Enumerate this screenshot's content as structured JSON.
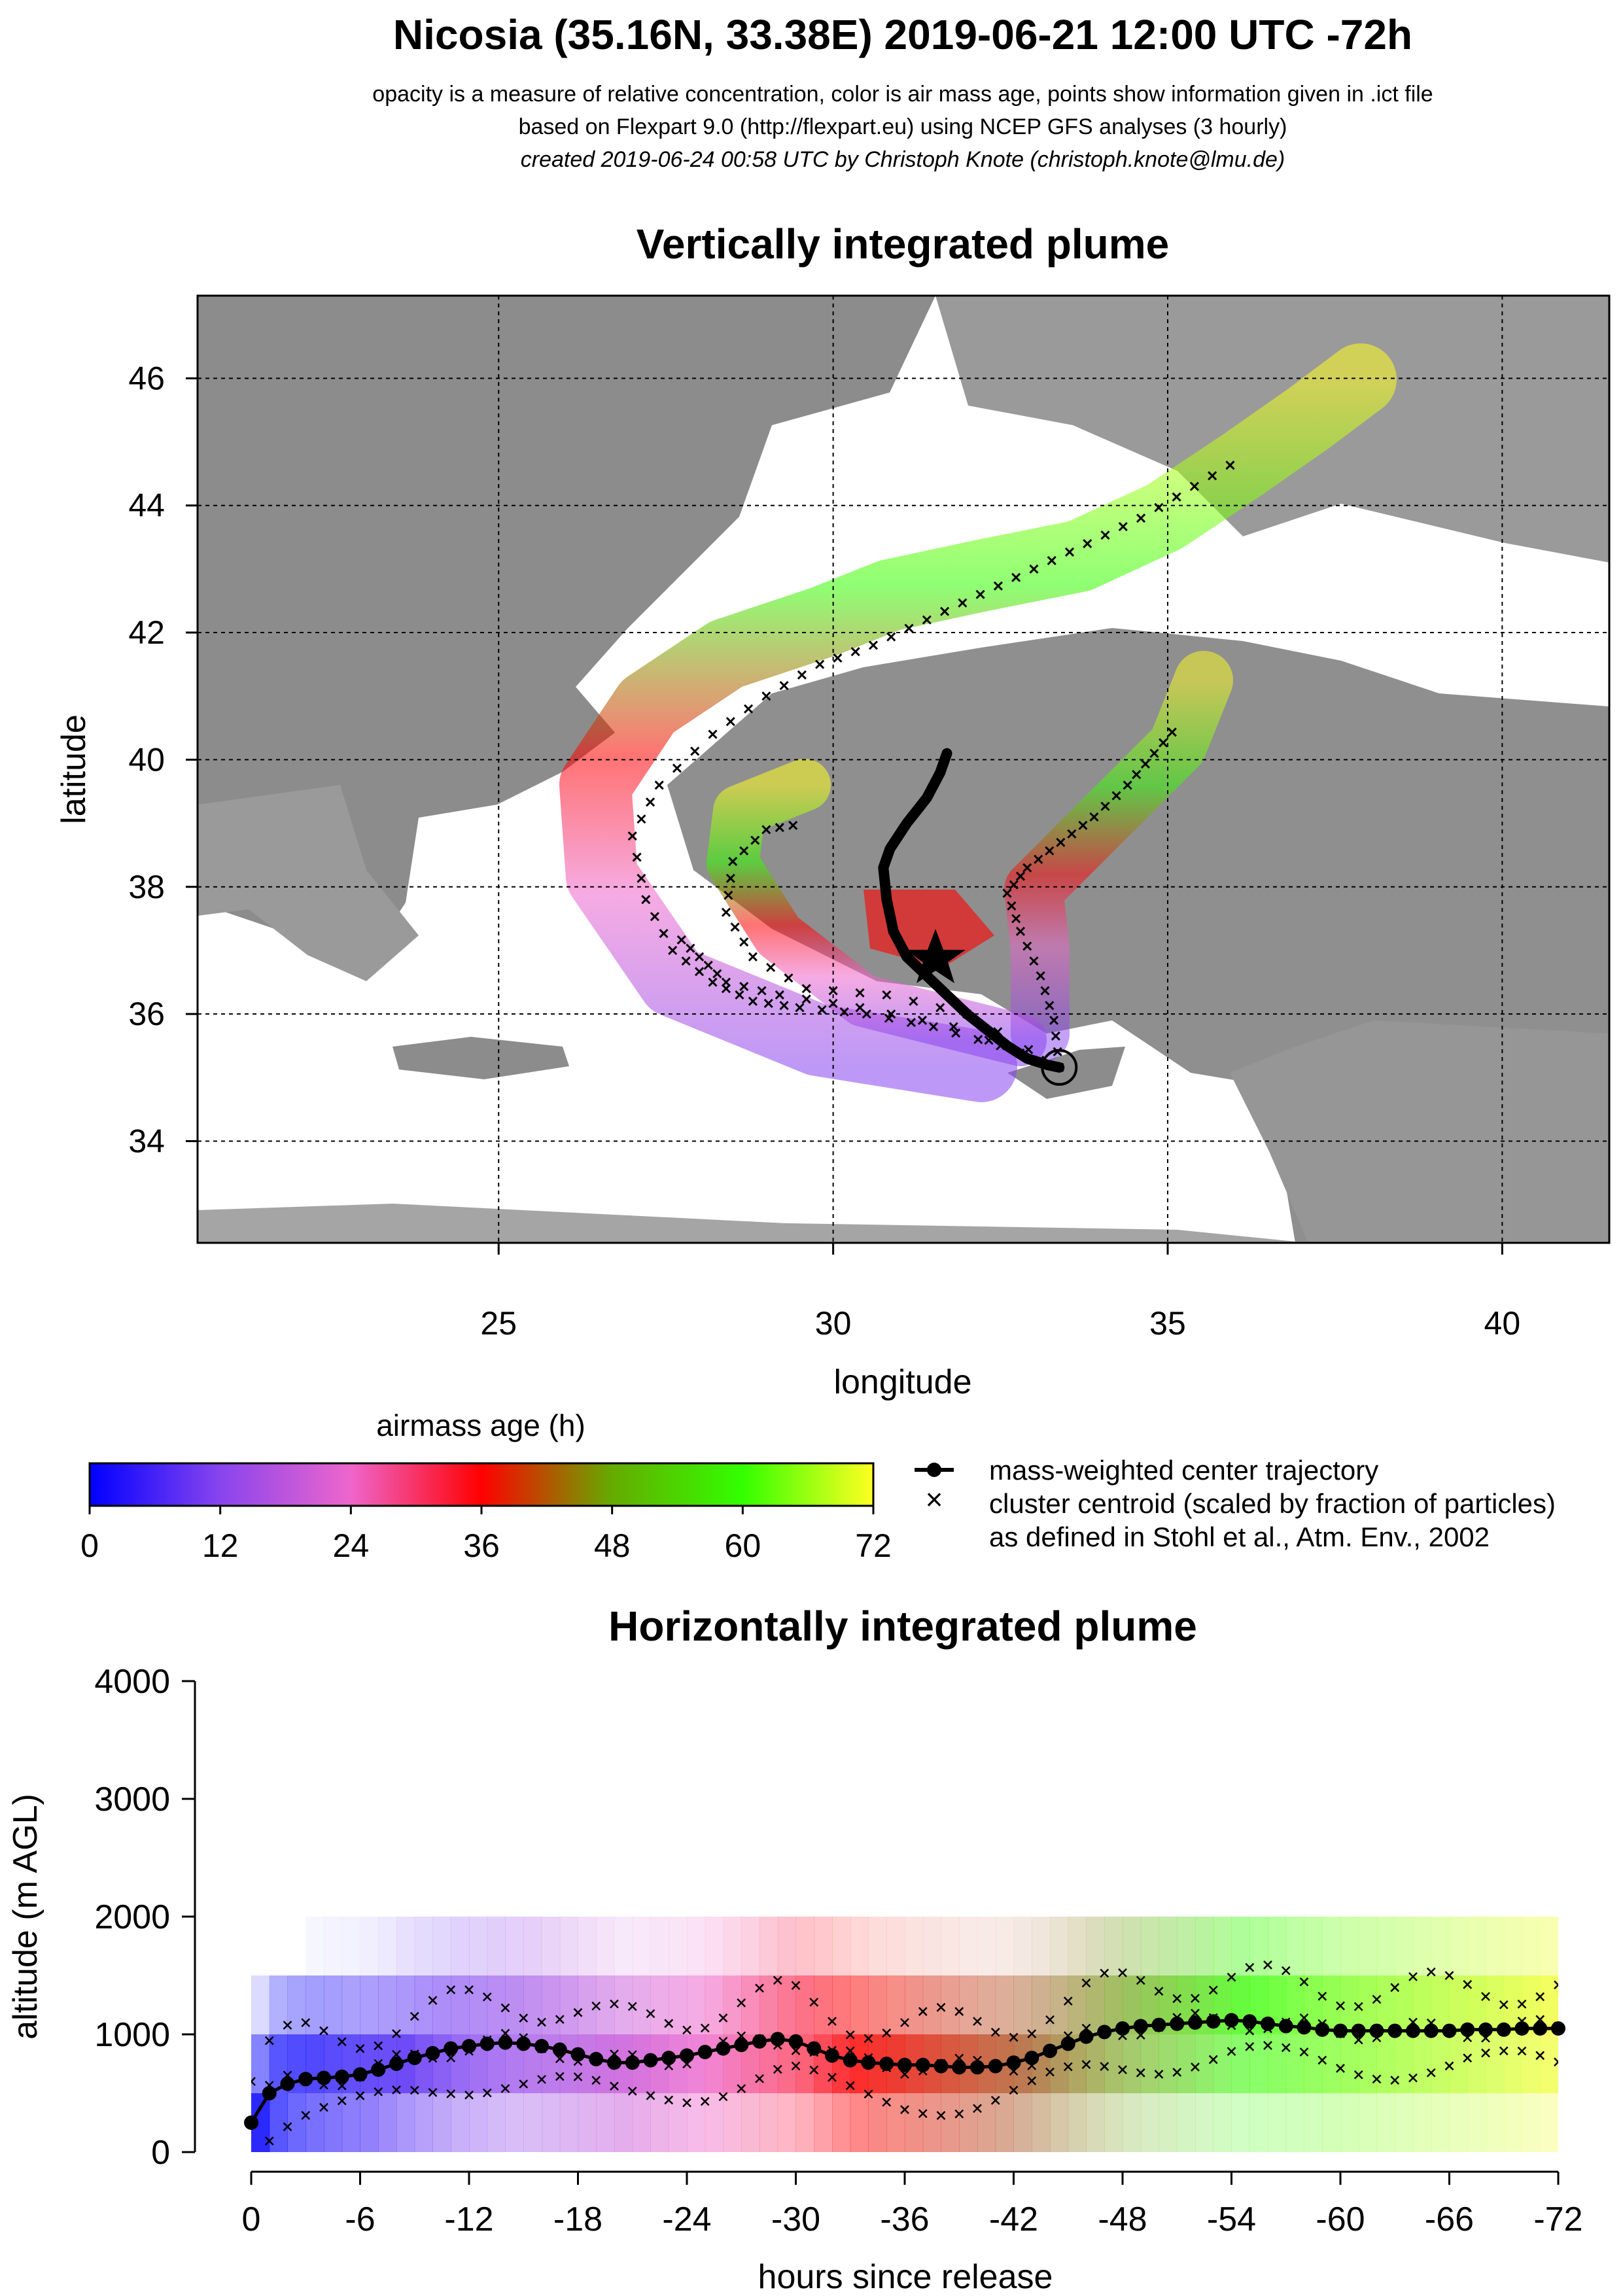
{
  "header": {
    "title": "Nicosia (35.16N, 33.38E) 2019-06-21 12:00 UTC -72h",
    "line1": "opacity is a measure of relative concentration, color is air mass age, points show information given in .ict file",
    "line2": "based on Flexpart 9.0 (http://flexpart.eu) using NCEP GFS analyses (3 hourly)",
    "line3": "created 2019-06-24 00:58 UTC by Christoph Knote (christoph.knote@lmu.de)"
  },
  "colors": {
    "age_0": "#0000ff",
    "age_12": "#8844ee",
    "age_24": "#ee66cc",
    "age_36": "#ff0000",
    "age_48": "#66aa00",
    "age_60": "#33ff00",
    "age_72": "#ffff22",
    "land": "#8c8c8c",
    "sea": "#ffffff"
  },
  "map_panel": {
    "title": "Vertically integrated plume",
    "xlabel": "longitude",
    "ylabel": "latitude",
    "release_site": "Nicosia release marker"
  },
  "legend": {
    "colorbar_title": "airmass age (h)",
    "colorbar_ticks": [
      "0",
      "12",
      "24",
      "36",
      "48",
      "60",
      "72"
    ],
    "entry_line": "mass-weighted center trajectory",
    "entry_cross": "cluster centroid (scaled by fraction of particles)",
    "entry_cross_note": "as defined in Stohl et al., Atm. Env., 2002"
  },
  "profile_panel": {
    "title": "Horizontally integrated plume",
    "xlabel": "hours since release",
    "ylabel": "altitude (m AGL)"
  },
  "chart_data": [
    {
      "type": "scatter",
      "name_ref": "map",
      "xlim": [
        20.5,
        41.6
      ],
      "ylim": [
        32.4,
        47.3
      ],
      "x_ticks": [
        25,
        30,
        35,
        40
      ],
      "y_ticks": [
        34,
        36,
        38,
        40,
        42,
        44,
        46
      ],
      "x_tick_labels": [
        "25",
        "30",
        "35",
        "40"
      ],
      "y_tick_labels": [
        "34",
        "36",
        "38",
        "40",
        "42",
        "44",
        "46"
      ],
      "grid": true,
      "release": {
        "lon": 33.38,
        "lat": 35.16
      },
      "center_trajectory": {
        "lon": [
          33.38,
          33.2,
          32.9,
          32.6,
          32.3,
          32.0,
          31.7,
          31.4,
          31.1,
          30.9,
          30.8,
          30.75,
          30.85,
          31.1,
          31.4,
          31.6,
          31.7
        ],
        "lat": [
          35.16,
          35.2,
          35.3,
          35.5,
          35.75,
          36.0,
          36.3,
          36.6,
          36.9,
          37.3,
          37.8,
          38.3,
          38.6,
          39.0,
          39.4,
          39.8,
          40.1
        ]
      },
      "cluster_tracks": [
        {
          "lon": [
            33.38,
            32.5,
            31.5,
            30.5,
            29.5,
            28.8,
            28.2,
            27.6,
            27.2,
            27.0,
            27.4,
            28.2,
            29.0,
            29.8,
            30.6,
            31.4,
            32.2,
            33.0,
            33.8,
            34.6,
            35.4,
            36.2
          ],
          "lat": [
            35.16,
            35.5,
            35.8,
            36.0,
            36.1,
            36.2,
            36.5,
            37.0,
            37.8,
            38.8,
            39.6,
            40.4,
            41.0,
            41.5,
            41.8,
            42.2,
            42.6,
            43.0,
            43.4,
            43.8,
            44.3,
            44.8
          ]
        },
        {
          "lon": [
            33.38,
            33.3,
            33.1,
            32.8,
            32.6,
            32.9,
            33.4,
            33.9,
            34.4,
            34.8,
            35.2
          ],
          "lat": [
            35.16,
            35.9,
            36.6,
            37.3,
            37.9,
            38.3,
            38.7,
            39.1,
            39.6,
            40.1,
            40.6
          ]
        },
        {
          "lon": [
            33.38,
            32.0,
            30.8,
            29.6,
            28.8,
            28.4,
            28.5,
            29.0,
            29.6
          ],
          "lat": [
            35.16,
            36.0,
            36.3,
            36.4,
            36.9,
            37.6,
            38.4,
            38.9,
            39.0
          ]
        },
        {
          "lon": [
            33.38,
            31.8,
            30.4,
            29.2,
            28.4,
            28.0,
            27.6
          ],
          "lat": [
            35.16,
            35.8,
            36.1,
            36.3,
            36.5,
            36.9,
            37.3
          ]
        }
      ],
      "plume_age_colors": [
        "#0000ff",
        "#8844ee",
        "#ee66cc",
        "#ff0000",
        "#66aa00",
        "#33ff00",
        "#ffff22"
      ]
    },
    {
      "type": "heatmap",
      "name_ref": "profile",
      "xlim": [
        0,
        -72
      ],
      "ylim": [
        0,
        4000
      ],
      "x_ticks": [
        0,
        -6,
        -12,
        -18,
        -24,
        -30,
        -36,
        -42,
        -48,
        -54,
        -60,
        -66,
        -72
      ],
      "x_tick_labels": [
        "0",
        "-6",
        "-12",
        "-18",
        "-24",
        "-30",
        "-36",
        "-42",
        "-48",
        "-54",
        "-60",
        "-66",
        "-72"
      ],
      "y_ticks": [
        0,
        1000,
        2000,
        3000,
        4000
      ],
      "y_tick_labels": [
        "0",
        "1000",
        "2000",
        "3000",
        "4000"
      ],
      "center_trajectory": {
        "hours": [
          0,
          -1,
          -2,
          -3,
          -4,
          -5,
          -6,
          -7,
          -8,
          -9,
          -10,
          -11,
          -12,
          -13,
          -14,
          -15,
          -16,
          -17,
          -18,
          -19,
          -20,
          -21,
          -22,
          -23,
          -24,
          -25,
          -26,
          -27,
          -28,
          -29,
          -30,
          -31,
          -32,
          -33,
          -34,
          -35,
          -36,
          -37,
          -38,
          -39,
          -40,
          -41,
          -42,
          -43,
          -44,
          -45,
          -46,
          -47,
          -48,
          -49,
          -50,
          -51,
          -52,
          -53,
          -54,
          -55,
          -56,
          -57,
          -58,
          -59,
          -60,
          -61,
          -62,
          -63,
          -64,
          -65,
          -66,
          -67,
          -68,
          -69,
          -70,
          -71,
          -72
        ],
        "altitude_m": [
          250,
          500,
          580,
          620,
          630,
          640,
          660,
          700,
          750,
          800,
          840,
          880,
          900,
          920,
          930,
          920,
          900,
          870,
          830,
          790,
          760,
          760,
          780,
          800,
          820,
          850,
          880,
          910,
          940,
          960,
          940,
          880,
          820,
          780,
          760,
          750,
          740,
          740,
          730,
          720,
          720,
          730,
          760,
          800,
          860,
          920,
          980,
          1020,
          1050,
          1070,
          1080,
          1090,
          1100,
          1110,
          1120,
          1110,
          1090,
          1070,
          1060,
          1040,
          1030,
          1030,
          1030,
          1030,
          1030,
          1030,
          1030,
          1040,
          1040,
          1040,
          1050,
          1050,
          1050
        ]
      }
    }
  ]
}
